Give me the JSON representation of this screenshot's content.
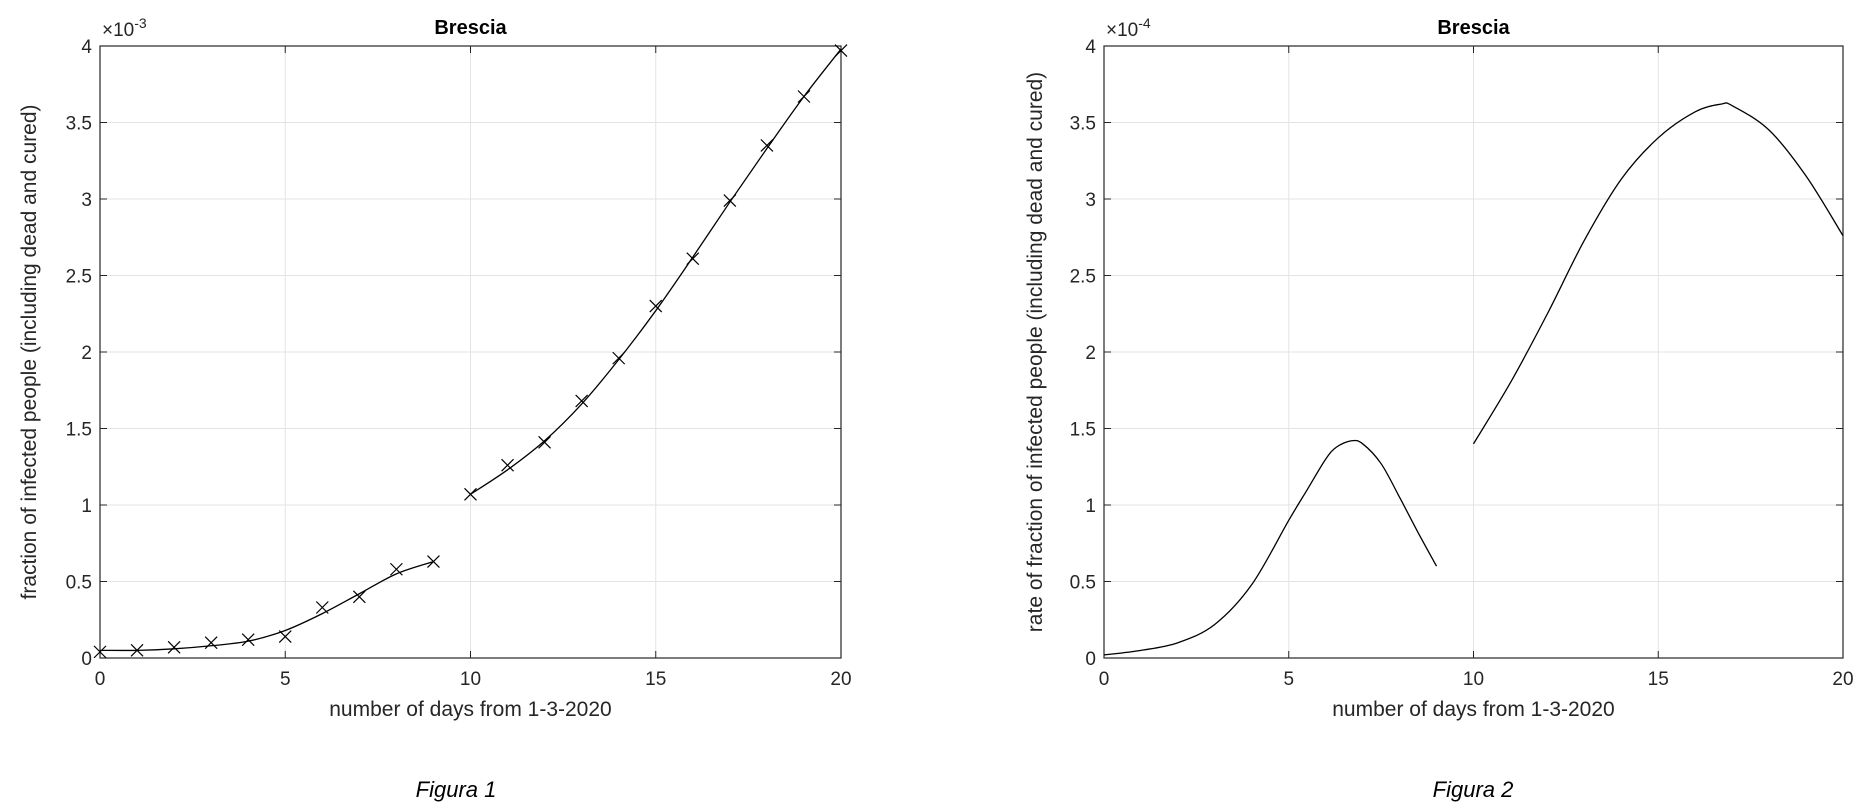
{
  "chart_data": [
    {
      "type": "line",
      "title": "Brescia",
      "xlabel": "number of days from 1-3-2020",
      "ylabel": "fraction of infected people (including dead and cured)",
      "caption": "Figura 1",
      "y_multiplier": "×10",
      "y_exponent": "-3",
      "xlim": [
        0,
        20
      ],
      "ylim": [
        0,
        4
      ],
      "xticks": [
        "0",
        "5",
        "10",
        "15",
        "20"
      ],
      "yticks": [
        "0",
        "0.5",
        "1",
        "1.5",
        "2",
        "2.5",
        "3",
        "3.5",
        "4"
      ],
      "grid": true,
      "series": [
        {
          "marker": "x",
          "line": false,
          "x": [
            0,
            1,
            2,
            3,
            4,
            5,
            6,
            7,
            8,
            9,
            10,
            11,
            12,
            13,
            14,
            15,
            16,
            17,
            18,
            19,
            20
          ],
          "y": [
            0.04,
            0.05,
            0.07,
            0.1,
            0.12,
            0.14,
            0.33,
            0.4,
            0.58,
            0.63,
            1.07,
            1.26,
            1.41,
            1.68,
            1.96,
            2.3,
            2.61,
            2.99,
            3.35,
            3.67,
            3.97
          ]
        },
        {
          "marker": "none",
          "line": true,
          "x": [
            0,
            1,
            2,
            3,
            4,
            5,
            6,
            7,
            8,
            9
          ],
          "y": [
            0.05,
            0.05,
            0.06,
            0.08,
            0.11,
            0.18,
            0.29,
            0.42,
            0.55,
            0.63
          ]
        },
        {
          "marker": "none",
          "line": true,
          "x": [
            10,
            11,
            12,
            13,
            14,
            15,
            16,
            17,
            18,
            19,
            20
          ],
          "y": [
            1.07,
            1.23,
            1.42,
            1.66,
            1.95,
            2.27,
            2.62,
            2.98,
            3.33,
            3.67,
            3.98
          ]
        }
      ],
      "color": "#000000"
    },
    {
      "type": "line",
      "title": "Brescia",
      "xlabel": "number of days from 1-3-2020",
      "ylabel": "rate of fraction of infected people (including dead and cured)",
      "caption": "Figura 2",
      "y_multiplier": "×10",
      "y_exponent": "-4",
      "xlim": [
        0,
        20
      ],
      "ylim": [
        0,
        4
      ],
      "xticks": [
        "0",
        "5",
        "10",
        "15",
        "20"
      ],
      "yticks": [
        "0",
        "0.5",
        "1",
        "1.5",
        "2",
        "2.5",
        "3",
        "3.5",
        "4"
      ],
      "grid": true,
      "series": [
        {
          "marker": "none",
          "line": true,
          "x": [
            0,
            1,
            2,
            3,
            4,
            5,
            5.5,
            6,
            6.3,
            6.7,
            7,
            7.5,
            8,
            8.5,
            9
          ],
          "y": [
            0.02,
            0.05,
            0.1,
            0.22,
            0.48,
            0.9,
            1.1,
            1.3,
            1.38,
            1.42,
            1.4,
            1.27,
            1.05,
            0.82,
            0.6
          ]
        },
        {
          "marker": "none",
          "line": true,
          "x": [
            10,
            11,
            12,
            13,
            14,
            15,
            16,
            16.7,
            17,
            18,
            19,
            20
          ],
          "y": [
            1.4,
            1.8,
            2.25,
            2.73,
            3.13,
            3.4,
            3.57,
            3.62,
            3.61,
            3.45,
            3.15,
            2.76
          ]
        }
      ],
      "color": "#000000"
    }
  ]
}
